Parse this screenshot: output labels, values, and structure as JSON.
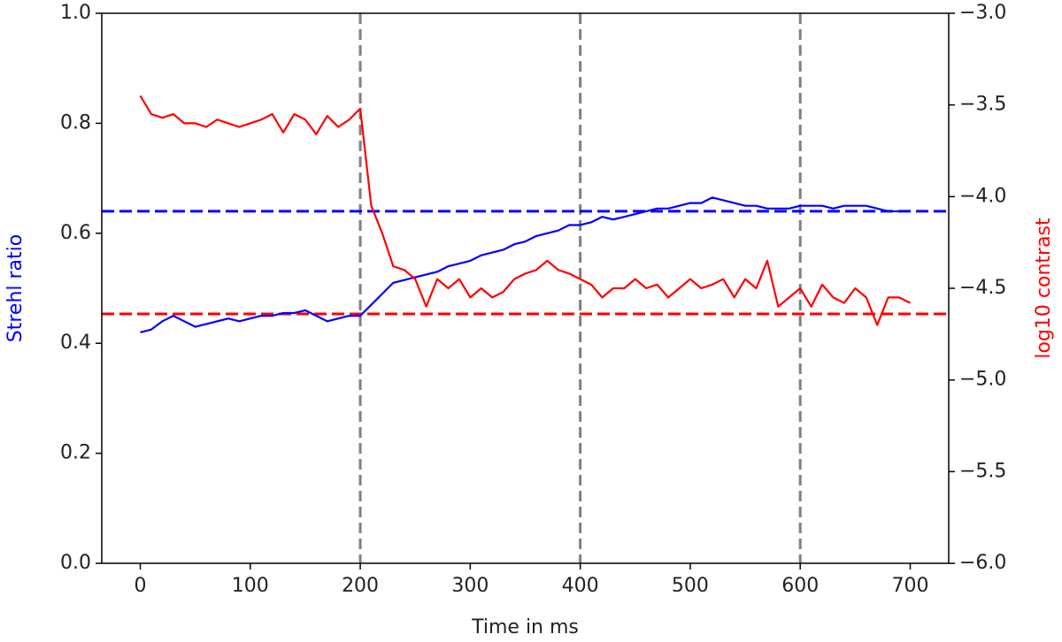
{
  "chart_data": {
    "type": "line",
    "xlabel": "Time in ms",
    "ylabel": "Strehl ratio",
    "y2label": "log10 contrast",
    "x": [
      0,
      10,
      20,
      30,
      40,
      50,
      60,
      70,
      80,
      90,
      100,
      110,
      120,
      130,
      140,
      150,
      160,
      170,
      180,
      190,
      200,
      210,
      220,
      230,
      240,
      250,
      260,
      270,
      280,
      290,
      300,
      310,
      320,
      330,
      340,
      350,
      360,
      370,
      380,
      390,
      400,
      410,
      420,
      430,
      440,
      450,
      460,
      470,
      480,
      490,
      500,
      510,
      520,
      530,
      540,
      550,
      560,
      570,
      580,
      590,
      600,
      610,
      620,
      630,
      640,
      650,
      660,
      670,
      680,
      690,
      700
    ],
    "series": [
      {
        "name": "Strehl ratio",
        "color": "#0000ff",
        "axis": "y",
        "values": [
          0.42,
          0.425,
          0.44,
          0.45,
          0.44,
          0.43,
          0.435,
          0.44,
          0.445,
          0.44,
          0.445,
          0.45,
          0.45,
          0.455,
          0.455,
          0.46,
          0.45,
          0.44,
          0.445,
          0.45,
          0.45,
          0.47,
          0.49,
          0.51,
          0.515,
          0.52,
          0.525,
          0.53,
          0.54,
          0.545,
          0.55,
          0.56,
          0.565,
          0.57,
          0.58,
          0.585,
          0.595,
          0.6,
          0.605,
          0.615,
          0.615,
          0.62,
          0.63,
          0.625,
          0.63,
          0.635,
          0.64,
          0.645,
          0.645,
          0.65,
          0.655,
          0.655,
          0.665,
          0.66,
          0.655,
          0.65,
          0.65,
          0.645,
          0.645,
          0.645,
          0.65,
          0.65,
          0.65,
          0.645,
          0.65,
          0.65,
          0.65,
          0.645,
          0.64,
          0.64,
          0.64
        ]
      },
      {
        "name": "log10 contrast",
        "color": "#ff0000",
        "axis": "y2",
        "values": [
          -3.45,
          -3.55,
          -3.57,
          -3.55,
          -3.6,
          -3.6,
          -3.62,
          -3.58,
          -3.6,
          -3.62,
          -3.6,
          -3.58,
          -3.55,
          -3.65,
          -3.55,
          -3.58,
          -3.66,
          -3.56,
          -3.62,
          -3.58,
          -3.52,
          -4.05,
          -4.2,
          -4.38,
          -4.4,
          -4.45,
          -4.6,
          -4.45,
          -4.5,
          -4.45,
          -4.55,
          -4.5,
          -4.55,
          -4.52,
          -4.45,
          -4.42,
          -4.4,
          -4.35,
          -4.4,
          -4.42,
          -4.45,
          -4.48,
          -4.55,
          -4.5,
          -4.5,
          -4.45,
          -4.5,
          -4.48,
          -4.55,
          -4.5,
          -4.45,
          -4.5,
          -4.48,
          -4.45,
          -4.55,
          -4.45,
          -4.5,
          -4.35,
          -4.6,
          -4.55,
          -4.5,
          -4.6,
          -4.48,
          -4.55,
          -4.58,
          -4.5,
          -4.55,
          -4.7,
          -4.55,
          -4.55,
          -4.58
        ]
      }
    ],
    "hlines": [
      {
        "value": 0.64,
        "axis": "y",
        "color": "#0000ff"
      },
      {
        "value": -4.64,
        "axis": "y2",
        "color": "#ff0000"
      }
    ],
    "vlines": [
      200,
      400,
      600
    ],
    "vline_color": "#808080",
    "xlim": [
      -35,
      735
    ],
    "ylim": [
      0,
      1
    ],
    "y2lim": [
      -6,
      -3
    ],
    "xticks": [
      0,
      100,
      200,
      300,
      400,
      500,
      600,
      700
    ],
    "yticks": [
      {
        "value": 0,
        "label": "0.0"
      },
      0.2,
      0.4,
      0.6,
      0.8,
      {
        "value": 1,
        "label": "1.0"
      }
    ],
    "y2ticks": [
      {
        "value": -6,
        "label": "−6.0"
      },
      {
        "value": -5.5,
        "label": "−5.5"
      },
      {
        "value": -5,
        "label": "−5.0"
      },
      {
        "value": -4.5,
        "label": "−4.5"
      },
      {
        "value": -4,
        "label": "−4.0"
      },
      {
        "value": -3.5,
        "label": "−3.5"
      },
      {
        "value": -3,
        "label": "−3.0"
      }
    ]
  }
}
